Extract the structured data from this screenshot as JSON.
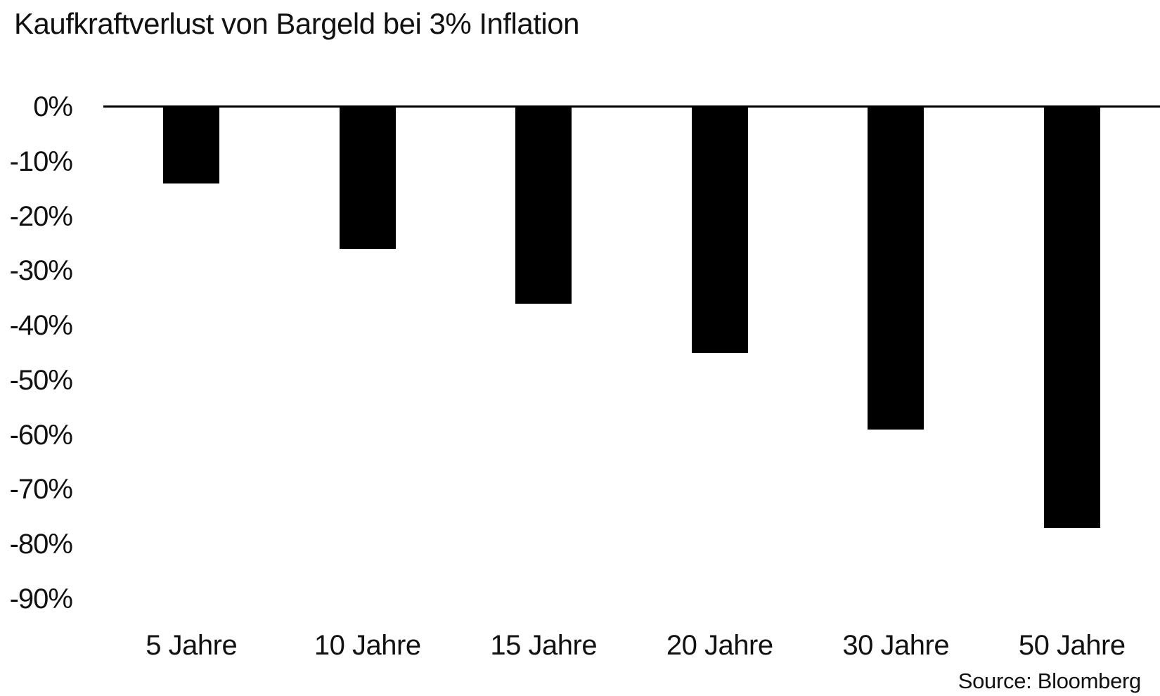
{
  "title": "Kaufkraftverlust von Bargeld bei 3% Inflation",
  "source": "Source: Bloomberg",
  "colors": {
    "bar": "#000000",
    "axis": "#000000",
    "text": "#111111",
    "background": "#ffffff"
  },
  "chart_data": {
    "type": "bar",
    "title": "Kaufkraftverlust von Bargeld bei 3% Inflation",
    "categories": [
      "5 Jahre",
      "10 Jahre",
      "15 Jahre",
      "20 Jahre",
      "30 Jahre",
      "50 Jahre"
    ],
    "values": [
      -14,
      -26,
      -36,
      -45,
      -59,
      -77
    ],
    "unit": "%",
    "xlabel": "",
    "ylabel": "",
    "ylim": [
      -90,
      0
    ],
    "yticks": [
      0,
      -10,
      -20,
      -30,
      -40,
      -50,
      -60,
      -70,
      -80,
      -90
    ],
    "ytick_labels": [
      "0%",
      "-10%",
      "-20%",
      "-30%",
      "-40%",
      "-50%",
      "-60%",
      "-70%",
      "-80%",
      "-90%"
    ],
    "grid": false,
    "legend": null,
    "bar_color": "#000000",
    "source": "Source: Bloomberg"
  }
}
